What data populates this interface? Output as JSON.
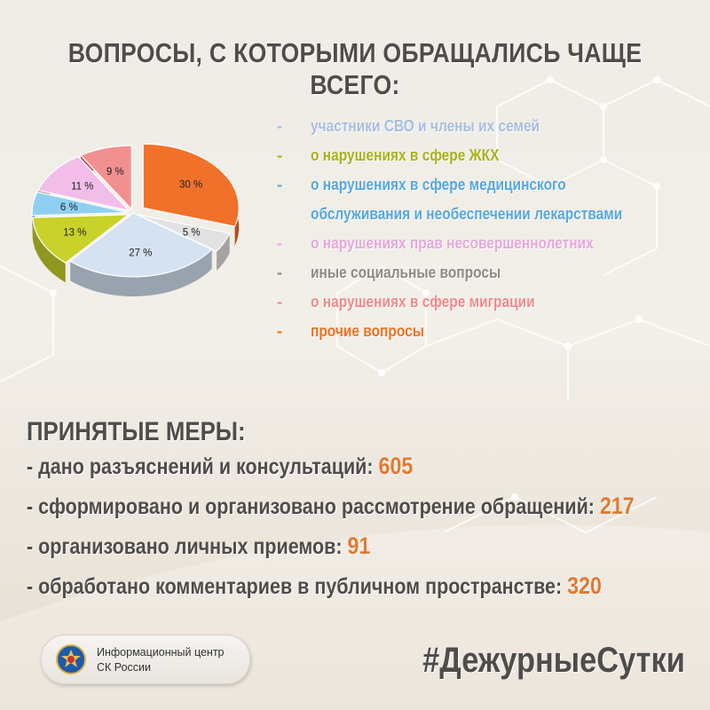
{
  "title": "ВОПРОСЫ, С КОТОРЫМИ ОБРАЩАЛИСЬ ЧАЩЕ ВСЕГО:",
  "chart_data": {
    "type": "pie",
    "title": "",
    "slices": [
      {
        "label": "прочие вопросы",
        "value": 30,
        "text": "30 %",
        "color": "#f2712a"
      },
      {
        "label": "иные социальные вопросы",
        "value": 5,
        "text": "5 %",
        "color": "#e2e2e2"
      },
      {
        "label": "участники СВО и члены их семей",
        "value": 27,
        "text": "27 %",
        "color": "#d4e2f2"
      },
      {
        "label": "о нарушениях в сфере ЖКХ",
        "value": 13,
        "text": "13 %",
        "color": "#c8d22a"
      },
      {
        "label": "о нарушениях в сфере медицинского обслуживания и необеспечении лекарствами",
        "value": 6,
        "text": "6 %",
        "color": "#8fd0f2"
      },
      {
        "label": "о нарушениях прав несовершеннолетних",
        "value": 11,
        "text": "11 %",
        "color": "#f2bde8"
      },
      {
        "label": "о нарушениях в сфере миграции",
        "value": 9,
        "text": "9 %",
        "color": "#f29090"
      }
    ]
  },
  "legend": [
    {
      "text": "участники СВО и члены их семей",
      "color": "#a7bde2"
    },
    {
      "text": "о нарушениях в сфере ЖКХ",
      "color": "#a9b21c"
    },
    {
      "text": "о нарушениях в сфере медицинского",
      "text2": "обслуживания и необеспечении лекарствами",
      "color": "#57a8de"
    },
    {
      "text": "о нарушениях прав несовершеннолетних",
      "color": "#e7a8dc"
    },
    {
      "text": "иные социальные вопросы",
      "color": "#8d8b88"
    },
    {
      "text": "о нарушениях в сфере миграции",
      "color": "#ef8b8b"
    },
    {
      "text": "прочие вопросы",
      "color": "#f07121"
    }
  ],
  "measures": {
    "title": "ПРИНЯТЫЕ МЕРЫ:",
    "items": [
      {
        "label": "- дано разъяснений и консультаций: ",
        "value": "605"
      },
      {
        "label": "- сформировано и организовано рассмотрение обращений: ",
        "value": "217"
      },
      {
        "label": "- организовано личных приемов: ",
        "value": "91"
      },
      {
        "label": "- обработано комментариев в публичном пространстве: ",
        "value": "320"
      }
    ]
  },
  "badge": {
    "line1": "Информационный центр",
    "line2": "СК России"
  },
  "hashtag": "#ДежурныеСутки",
  "colors": {
    "accent": "#e07a32",
    "text": "#4f4d4b"
  }
}
